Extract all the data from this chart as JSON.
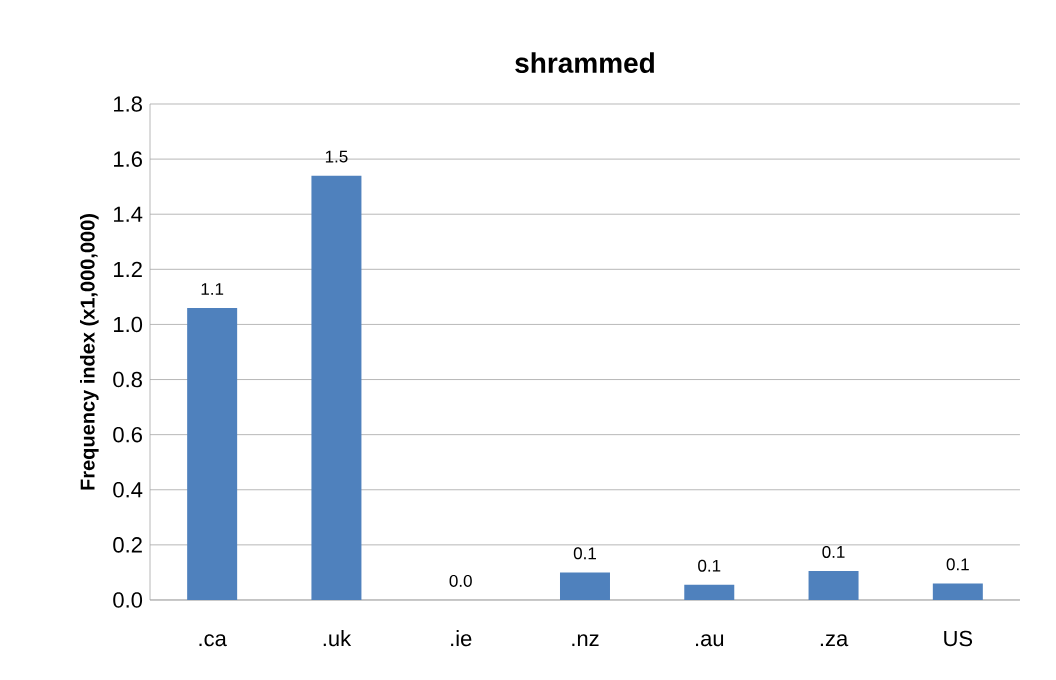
{
  "chart_data": {
    "type": "bar",
    "title": "shrammed",
    "ylabel": "Frequency index (x1,000,000)",
    "categories": [
      ".ca",
      ".uk",
      ".ie",
      ".nz",
      ".au",
      ".za",
      "US"
    ],
    "values": [
      1.06,
      1.54,
      0,
      0.1,
      0.055,
      0.105,
      0.06
    ],
    "value_labels": [
      "1.1",
      "1.5",
      "0.0",
      "0.1",
      "0.1",
      "0.1",
      "0.1"
    ],
    "color": "#4f81bd",
    "ylim": [
      0,
      1.8
    ],
    "yticks": [
      {
        "value": 0,
        "label": "0.0"
      },
      0.2,
      0.4,
      0.6,
      0.8,
      {
        "value": 1,
        "label": "1.0"
      },
      1.2,
      1.4,
      1.6,
      1.8
    ],
    "grid": "y"
  }
}
